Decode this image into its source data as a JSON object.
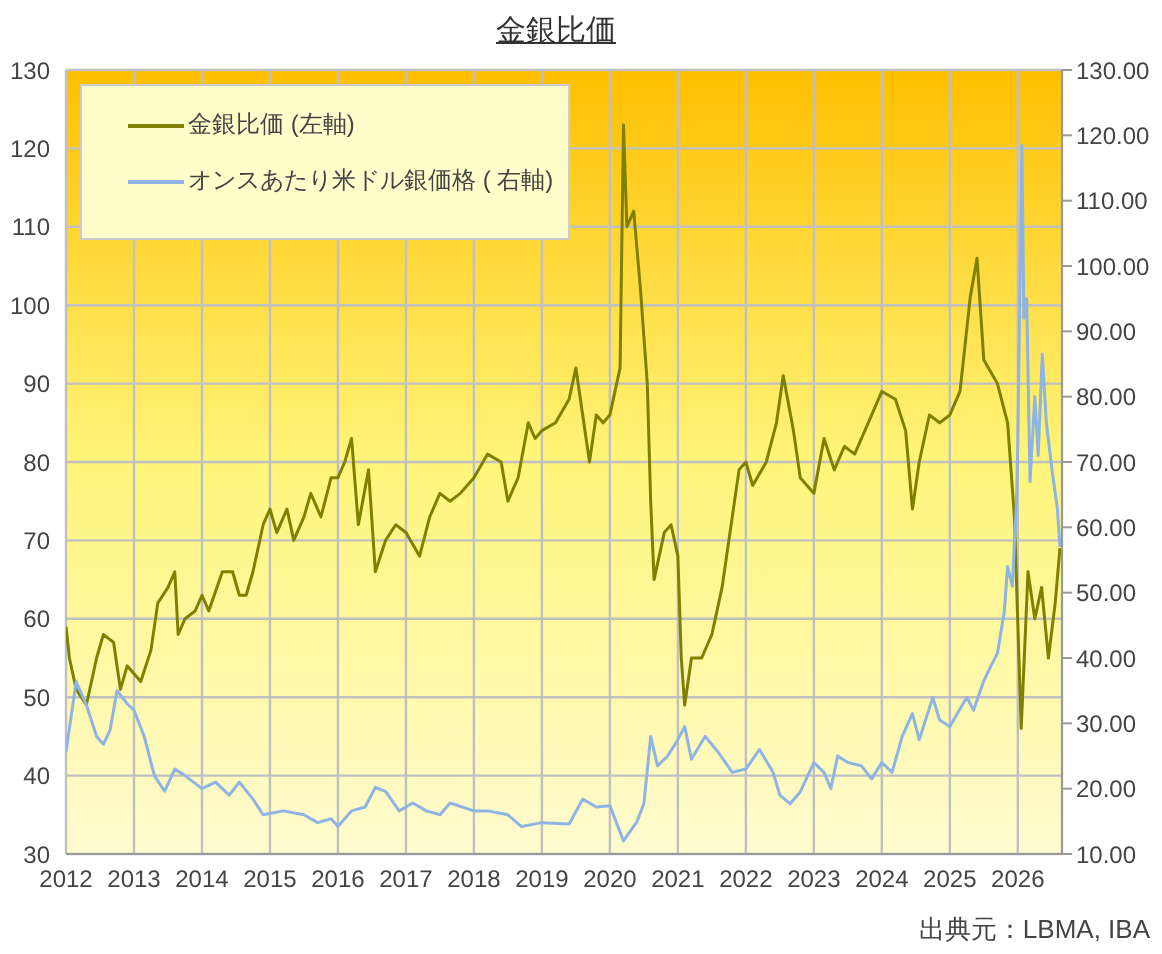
{
  "chart_data": {
    "type": "line",
    "title": "金銀比価",
    "annotations": [
      "出典元：LBMA, IBA"
    ],
    "xlim": [
      2012,
      2026.65
    ],
    "xticks": [
      2012,
      2013,
      2014,
      2015,
      2016,
      2017,
      2018,
      2019,
      2020,
      2021,
      2022,
      2023,
      2024,
      2025,
      2026
    ],
    "ylim": [
      30,
      130
    ],
    "yticks": [
      30,
      40,
      50,
      60,
      70,
      80,
      90,
      100,
      110,
      120,
      130
    ],
    "y2lim": [
      10,
      130
    ],
    "y2ticks": [
      {
        "value": 10,
        "label": "10.00"
      },
      {
        "value": 20,
        "label": "20.00"
      },
      {
        "value": 30,
        "label": "30.00"
      },
      {
        "value": 40,
        "label": "40.00"
      },
      {
        "value": 50,
        "label": "50.00"
      },
      {
        "value": 60,
        "label": "60.00"
      },
      {
        "value": 70,
        "label": "70.00"
      },
      {
        "value": 80,
        "label": "80.00"
      },
      {
        "value": 90,
        "label": "90.00"
      },
      {
        "value": 100,
        "label": "100.00"
      },
      {
        "value": 110,
        "label": "110.00"
      },
      {
        "value": 120,
        "label": "120.00"
      },
      {
        "value": 130,
        "label": "130.00"
      }
    ],
    "grid": true,
    "legend": "top left",
    "marker": "none",
    "series": [
      {
        "name": "金銀比価 (左軸)",
        "color": "#808000",
        "x": [
          2012.0,
          2012.05,
          2012.15,
          2012.3,
          2012.45,
          2012.55,
          2012.7,
          2012.8,
          2012.9,
          2013.0,
          2013.1,
          2013.25,
          2013.35,
          2013.5,
          2013.6,
          2013.65,
          2013.75,
          2013.9,
          2014.0,
          2014.1,
          2014.3,
          2014.45,
          2014.55,
          2014.65,
          2014.75,
          2014.9,
          2015.0,
          2015.1,
          2015.25,
          2015.35,
          2015.5,
          2015.6,
          2015.75,
          2015.9,
          2016.0,
          2016.1,
          2016.2,
          2016.3,
          2016.45,
          2016.55,
          2016.7,
          2016.85,
          2017.0,
          2017.2,
          2017.35,
          2017.5,
          2017.65,
          2017.8,
          2018.0,
          2018.2,
          2018.4,
          2018.5,
          2018.65,
          2018.8,
          2018.9,
          2019.0,
          2019.2,
          2019.4,
          2019.5,
          2019.6,
          2019.7,
          2019.8,
          2019.9,
          2020.0,
          2020.15,
          2020.2,
          2020.25,
          2020.35,
          2020.45,
          2020.55,
          2020.6,
          2020.65,
          2020.8,
          2020.9,
          2021.0,
          2021.05,
          2021.1,
          2021.2,
          2021.35,
          2021.5,
          2021.65,
          2021.75,
          2021.9,
          2022.0,
          2022.1,
          2022.3,
          2022.45,
          2022.55,
          2022.7,
          2022.8,
          2023.0,
          2023.15,
          2023.3,
          2023.45,
          2023.6,
          2023.8,
          2024.0,
          2024.2,
          2024.35,
          2024.45,
          2024.55,
          2024.7,
          2024.85,
          2025.0,
          2025.15,
          2025.3,
          2025.4,
          2025.5,
          2025.7,
          2025.85,
          2025.95,
          2026.05,
          2026.15,
          2026.25,
          2026.35,
          2026.45,
          2026.55,
          2026.62
        ],
        "values": [
          59,
          55,
          51,
          49,
          55,
          58,
          57,
          51,
          54,
          53,
          52,
          56,
          62,
          64,
          66,
          58,
          60,
          61,
          63,
          61,
          66,
          66,
          63,
          63,
          66,
          72,
          74,
          71,
          74,
          70,
          73,
          76,
          73,
          78,
          78,
          80,
          83,
          72,
          79,
          66,
          70,
          72,
          71,
          68,
          73,
          76,
          75,
          76,
          78,
          81,
          80,
          75,
          78,
          85,
          83,
          84,
          85,
          88,
          92,
          86,
          80,
          86,
          85,
          86,
          92,
          123,
          110,
          112,
          102,
          90,
          75,
          65,
          71,
          72,
          68,
          55,
          49,
          55,
          55,
          58,
          64,
          70,
          79,
          80,
          77,
          80,
          85,
          91,
          84,
          78,
          76,
          83,
          79,
          82,
          81,
          85,
          89,
          88,
          84,
          74,
          80,
          86,
          85,
          86,
          89,
          101,
          106,
          93,
          90,
          85,
          73,
          46,
          66,
          60,
          64,
          55,
          62,
          69
        ]
      },
      {
        "name": "オンスあたり米ドル銀価格 ( 右軸)",
        "color": "#8eb4e3",
        "axis": "y2",
        "x": [
          2012.0,
          2012.15,
          2012.3,
          2012.45,
          2012.55,
          2012.65,
          2012.75,
          2012.9,
          2013.0,
          2013.15,
          2013.3,
          2013.45,
          2013.6,
          2013.75,
          2014.0,
          2014.2,
          2014.4,
          2014.55,
          2014.75,
          2014.9,
          2015.2,
          2015.5,
          2015.7,
          2015.9,
          2016.0,
          2016.2,
          2016.4,
          2016.55,
          2016.7,
          2016.9,
          2017.1,
          2017.3,
          2017.5,
          2017.65,
          2018.0,
          2018.2,
          2018.5,
          2018.7,
          2019.0,
          2019.4,
          2019.6,
          2019.8,
          2020.0,
          2020.2,
          2020.4,
          2020.5,
          2020.6,
          2020.7,
          2020.85,
          2021.0,
          2021.1,
          2021.2,
          2021.4,
          2021.6,
          2021.8,
          2022.0,
          2022.2,
          2022.4,
          2022.5,
          2022.65,
          2022.8,
          2023.0,
          2023.15,
          2023.25,
          2023.35,
          2023.5,
          2023.7,
          2023.85,
          2024.0,
          2024.15,
          2024.3,
          2024.45,
          2024.55,
          2024.75,
          2024.85,
          2025.0,
          2025.25,
          2025.35,
          2025.5,
          2025.6,
          2025.7,
          2025.8,
          2025.85,
          2025.92,
          2025.98,
          2026.0,
          2026.03,
          2026.06,
          2026.09,
          2026.13,
          2026.18,
          2026.25,
          2026.3,
          2026.36,
          2026.42,
          2026.5,
          2026.58,
          2026.62
        ],
        "values": [
          25.6,
          36.4,
          32.8,
          28,
          26.8,
          29,
          35,
          33,
          32,
          28,
          22,
          19.6,
          23,
          22,
          20,
          21,
          19,
          21,
          18.4,
          16,
          16.6,
          16,
          14.8,
          15.4,
          14.2,
          16.6,
          17.2,
          20.2,
          19.6,
          16.6,
          17.8,
          16.6,
          16,
          17.8,
          16.6,
          16.6,
          16,
          14.2,
          14.8,
          14.6,
          18.4,
          17.2,
          17.4,
          12,
          15,
          17.7,
          28,
          23.5,
          25,
          27.5,
          29.5,
          24.5,
          28,
          25.5,
          22.5,
          23,
          26,
          22.5,
          19,
          17.7,
          19.5,
          24,
          22.5,
          20,
          25,
          24,
          23.5,
          21.5,
          24,
          22.5,
          28,
          31.5,
          27.5,
          34,
          30.5,
          29.5,
          34,
          32,
          36.5,
          38.7,
          40.7,
          47,
          54,
          51,
          64,
          73,
          96,
          118.5,
          92,
          95,
          67,
          80,
          71,
          86.5,
          76,
          69,
          63,
          57
        ]
      }
    ]
  }
}
